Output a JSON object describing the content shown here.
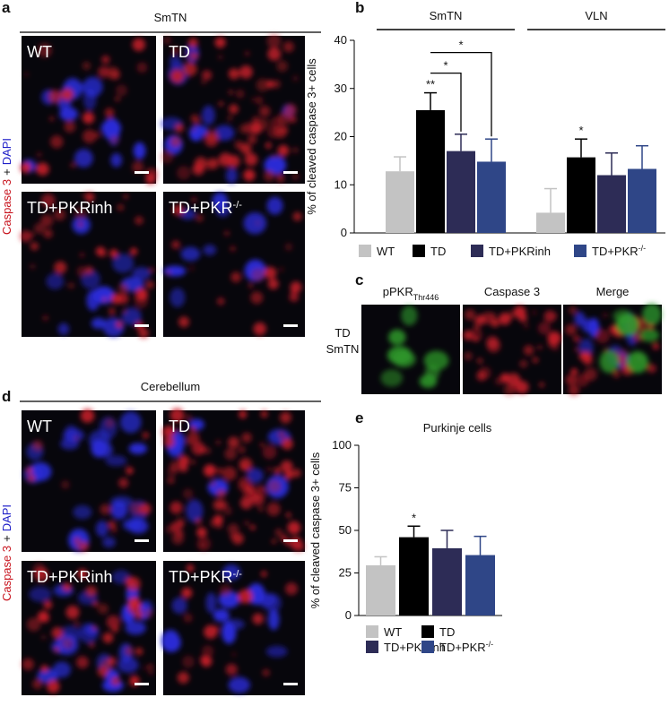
{
  "panel_labels": [
    "a",
    "b",
    "c",
    "d",
    "e"
  ],
  "panel_a": {
    "header": "SmTN",
    "stain_label": [
      "Caspase 3",
      "+",
      "DAPI"
    ],
    "images": [
      {
        "label": "WT"
      },
      {
        "label": "TD"
      },
      {
        "label": "TD+PKRinh"
      },
      {
        "label": "TD+PKR",
        "superscript": "-/-"
      }
    ]
  },
  "panel_c": {
    "row_label": [
      "TD",
      "SmTN"
    ],
    "columns": [
      {
        "label": "pPKR",
        "subscript": "Thr446"
      },
      {
        "label": "Caspase 3"
      },
      {
        "label": "Merge"
      }
    ]
  },
  "panel_d": {
    "header": "Cerebellum",
    "stain_label": [
      "Caspase 3",
      "+",
      "DAPI"
    ],
    "images": [
      {
        "label": "WT"
      },
      {
        "label": "TD"
      },
      {
        "label": "TD+PKRinh"
      },
      {
        "label": "TD+PKR",
        "superscript": "-/-"
      }
    ]
  },
  "chart_data": [
    {
      "type": "bar",
      "ylabel": "% of cleaved caspase 3+ cells",
      "categories": [
        "SmTN",
        "VLN"
      ],
      "ylim": [
        0,
        40
      ],
      "yticks": [
        0,
        10,
        20,
        30,
        40
      ],
      "series": [
        {
          "name": "WT",
          "color": "#c3c3c3",
          "values": [
            12.8,
            4.2
          ],
          "errors": [
            3.0,
            5.0
          ]
        },
        {
          "name": "TD",
          "color": "#000000",
          "values": [
            25.5,
            15.7
          ],
          "errors": [
            3.6,
            3.8
          ]
        },
        {
          "name": "TD+PKRinh",
          "color": "#2d2c56",
          "values": [
            17.0,
            12.0
          ],
          "errors": [
            3.5,
            4.6
          ]
        },
        {
          "name": "TD+PKR",
          "superscript": "-/-",
          "color": "#2f4687",
          "values": [
            14.8,
            13.3
          ],
          "errors": [
            4.7,
            4.8
          ]
        }
      ],
      "annotations": [
        {
          "text": "**",
          "series": 1,
          "category": 0
        },
        {
          "text": "*",
          "series": 1,
          "category": 1
        }
      ],
      "brackets": [
        {
          "text": "*",
          "category": 0,
          "from_series": 1,
          "to_series": 2
        },
        {
          "text": "*",
          "category": 0,
          "from_series": 1,
          "to_series": 3
        }
      ]
    },
    {
      "type": "bar",
      "title": "Purkinje cells",
      "ylabel": "% of cleaved caspase 3+ cells",
      "categories": [
        null
      ],
      "ylim": [
        0,
        100
      ],
      "yticks": [
        0,
        25,
        50,
        75,
        100
      ],
      "series": [
        {
          "name": "WT",
          "color": "#c3c3c3",
          "values": [
            29.5
          ],
          "errors": [
            5.0
          ]
        },
        {
          "name": "TD",
          "color": "#000000",
          "values": [
            46.0
          ],
          "errors": [
            6.5
          ]
        },
        {
          "name": "TD+PKRinh",
          "color": "#2d2c56",
          "values": [
            39.5
          ],
          "errors": [
            10.5
          ]
        },
        {
          "name": "TD+PKR",
          "superscript": "-/-",
          "color": "#2f4687",
          "values": [
            35.5
          ],
          "errors": [
            11.0
          ]
        }
      ],
      "annotations": [
        {
          "text": "*",
          "series": 1,
          "category": 0
        }
      ]
    }
  ]
}
